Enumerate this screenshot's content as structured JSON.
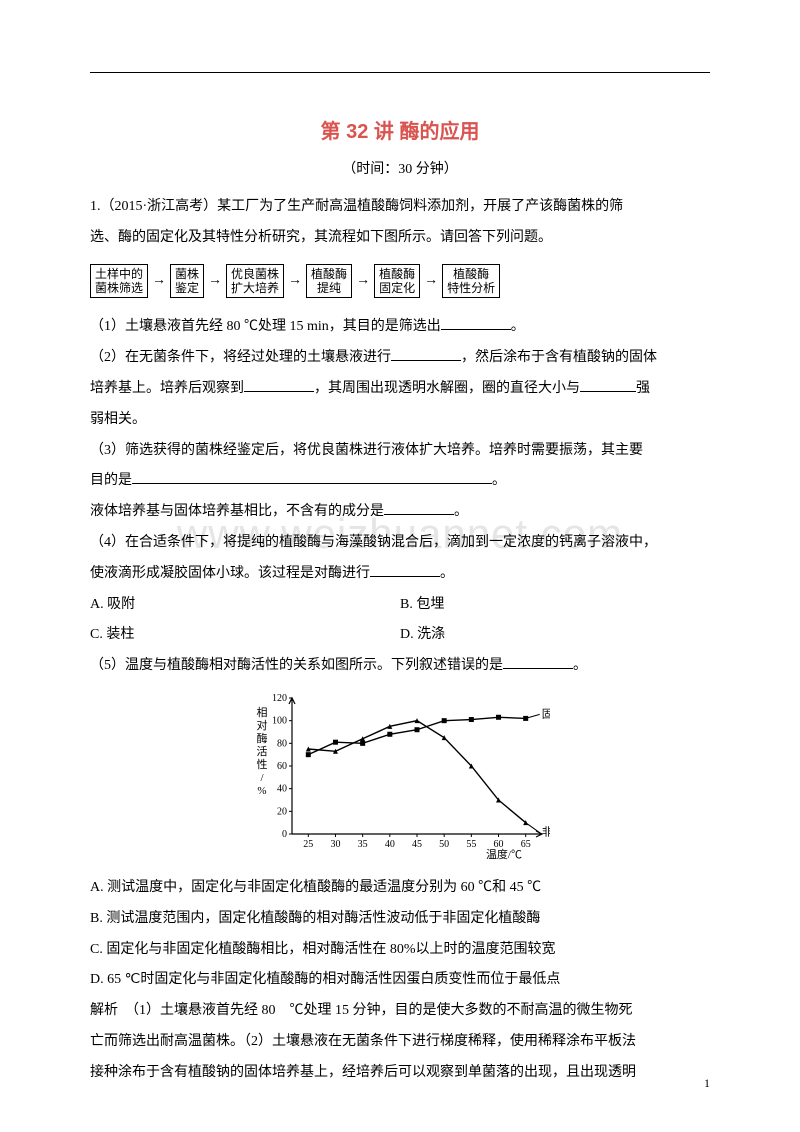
{
  "title": "第 32 讲 酶的应用",
  "time_label": "（时间：30 分钟）",
  "q1_intro_a": "1.（2015·浙江高考）某工厂为了生产耐高温植酸酶饲料添加剂，开展了产该酶菌株的筛",
  "q1_intro_b": "选、酶的固定化及其特性分析研究，其流程如下图所示。请回答下列问题。",
  "flow": {
    "b1a": "土样中的",
    "b1b": "菌株筛选",
    "b2a": "菌株",
    "b2b": "鉴定",
    "b3a": "优良菌株",
    "b3b": "扩大培养",
    "b4a": "植酸酶",
    "b4b": "提纯",
    "b5a": "植酸酶",
    "b5b": "固定化",
    "b6a": "植酸酶",
    "b6b": "特性分析"
  },
  "q1_1": "（1）土壤悬液首先经 80 ℃处理 15 min，其目的是筛选出",
  "q1_1_end": "。",
  "q1_2a": "（2）在无菌条件下，将经过处理的土壤悬液进行",
  "q1_2b": "，然后涂布于含有植酸钠的固体",
  "q1_2c": "培养基上。培养后观察到",
  "q1_2d": "，其周围出现透明水解圈，圈的直径大小与",
  "q1_2e": "强",
  "q1_2f": "弱相关。",
  "q1_3a": "（3）筛选获得的菌株经鉴定后，将优良菌株进行液体扩大培养。培养时需要振荡，其主要",
  "q1_3b": "目的是",
  "q1_3c": "。",
  "q1_3d": "液体培养基与固体培养基相比，不含有的成分是",
  "q1_3e": "。",
  "q1_4a": "（4）在合适条件下，将提纯的植酸酶与海藻酸钠混合后，滴加到一定浓度的钙离子溶液中，",
  "q1_4b": "使液滴形成凝胶固体小球。该过程是对酶进行",
  "q1_4c": "。",
  "opts4": {
    "A": "A. 吸附",
    "B": "B. 包埋",
    "C": "C. 装柱",
    "D": "D. 洗涤"
  },
  "q1_5": "（5）温度与植酸酶相对酶活性的关系如图所示。下列叙述错误的是",
  "q1_5_end": "。",
  "chart": {
    "type": "line",
    "ylabel": "相对酶活性/%",
    "xlabel": "温度/℃",
    "x_ticks": [
      25,
      30,
      35,
      40,
      45,
      50,
      55,
      60,
      65
    ],
    "y_ticks": [
      0,
      20,
      40,
      60,
      80,
      100,
      120
    ],
    "ylim": [
      0,
      120
    ],
    "xlim": [
      22,
      68
    ],
    "series": [
      {
        "name": "固定化植酸酶",
        "marker": "square",
        "color": "#000000",
        "data": [
          [
            25,
            70
          ],
          [
            30,
            81
          ],
          [
            35,
            80
          ],
          [
            40,
            88
          ],
          [
            45,
            92
          ],
          [
            50,
            100
          ],
          [
            55,
            101
          ],
          [
            60,
            103
          ],
          [
            65,
            102
          ]
        ]
      },
      {
        "name": "非固定化植酸酶",
        "marker": "triangle",
        "color": "#000000",
        "data": [
          [
            25,
            75
          ],
          [
            30,
            73
          ],
          [
            35,
            84
          ],
          [
            40,
            95
          ],
          [
            45,
            100
          ],
          [
            50,
            85
          ],
          [
            55,
            60
          ],
          [
            60,
            30
          ],
          [
            65,
            10
          ]
        ]
      }
    ],
    "background_color": "#ffffff",
    "axis_color": "#000000",
    "label_fontsize": 11,
    "line_width": 1.4,
    "marker_size": 5
  },
  "opts5": {
    "A": "A. 测试温度中，固定化与非固定化植酸酶的最适温度分别为 60 ℃和 45 ℃",
    "B": "B. 测试温度范围内，固定化植酸酶的相对酶活性波动低于非固定化植酸酶",
    "C": "C. 固定化与非固定化植酸酶相比，相对酶活性在 80%以上时的温度范围较宽",
    "D": "D. 65 ℃时固定化与非固定化植酸酶的相对酶活性因蛋白质变性而位于最低点"
  },
  "explain_a": "解析　（1）土壤悬液首先经 80　℃处理 15 分钟，目的是使大多数的不耐高温的微生物死",
  "explain_b": "亡而筛选出耐高温菌株。（2）土壤悬液在无菌条件下进行梯度稀释，使用稀释涂布平板法",
  "explain_c": "接种涂布于含有植酸钠的固体培养基上，经培养后可以观察到单菌落的出现，且出现透明",
  "watermark": "www.weizhuannet.com",
  "page_num": "1"
}
